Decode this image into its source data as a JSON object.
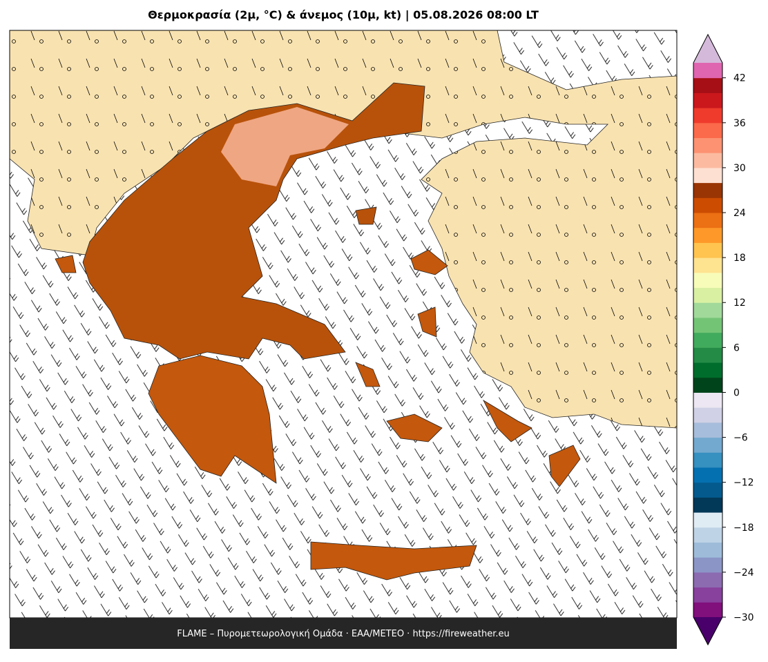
{
  "header": {
    "title": "Θερμοκρασία (2μ, °C) & άνεμος (10μ, kt)  |  05.08.2026 08:00 LT"
  },
  "footer": {
    "text": "FLAME – Πυρομετεωρολογική Ομάδα · ΕΑΑ/METEO · https://fireweather.eu"
  },
  "colorbar": {
    "ylim": [
      -30,
      44
    ],
    "yticks": [
      {
        "value": -30,
        "label": "−30"
      },
      {
        "value": -24,
        "label": "−24"
      },
      {
        "value": -18,
        "label": "−18"
      },
      {
        "value": -12,
        "label": "−12"
      },
      {
        "value": -6,
        "label": "−6"
      },
      0,
      6,
      12,
      18,
      24,
      30,
      36,
      42
    ],
    "colors": [
      "#810f7c",
      "#88419d",
      "#8c6bb1",
      "#8c96c6",
      "#9ebcda",
      "#bfd3e6",
      "#e0ecf4",
      "#023858",
      "#045a8d",
      "#0570b0",
      "#3690c0",
      "#74a9cf",
      "#a6bddb",
      "#d0d1e6",
      "#ece7f2",
      "#00441b",
      "#006d2c",
      "#238b45",
      "#41ab5d",
      "#74c476",
      "#a1d99b",
      "#d9f0a3",
      "#f7fcb9",
      "#fee391",
      "#fec44f",
      "#fe9929",
      "#ec7014",
      "#cc4c02",
      "#993404",
      "#fee0d2",
      "#fcbba1",
      "#fc9272",
      "#fb6a4a",
      "#ef3b2c",
      "#cb181d",
      "#a50f15",
      "#df65b0"
    ],
    "under_color": "#49006a",
    "over_color": "#d4b9da"
  }
}
